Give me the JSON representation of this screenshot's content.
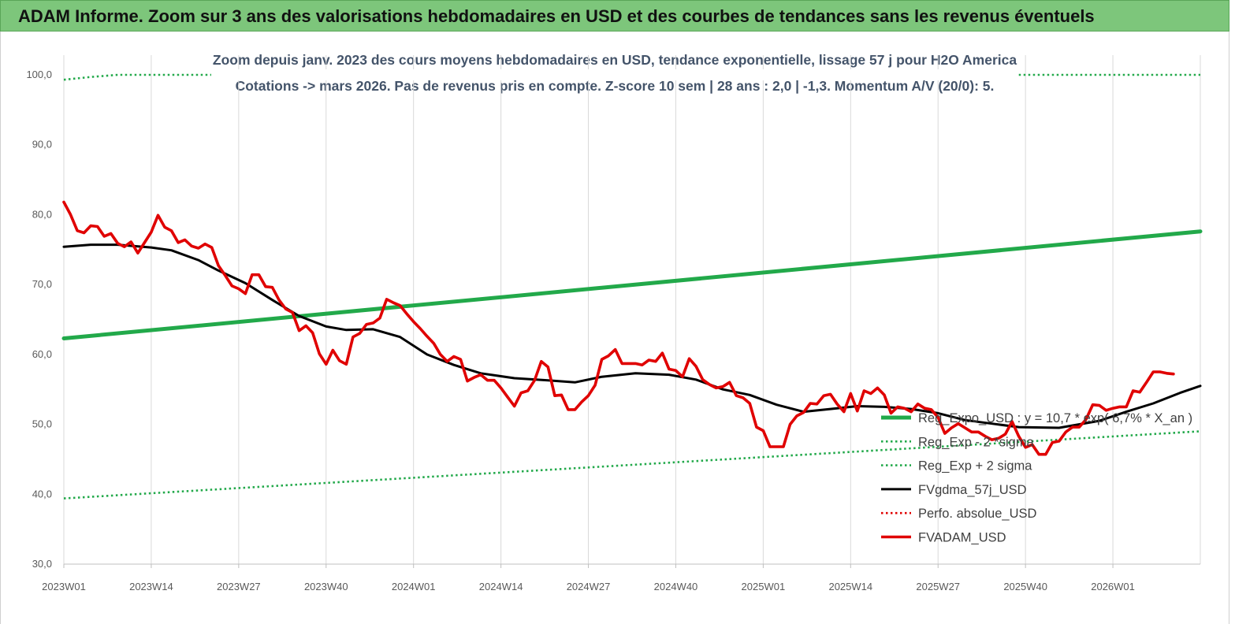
{
  "banner": {
    "title": "ADAM Informe. Zoom sur 3 ans des valorisations hebdomadaires en USD et des courbes de tendances sans les revenus éventuels",
    "color": "#7dc67b"
  },
  "chart_data": {
    "type": "line",
    "title_line1": "Zoom depuis janv. 2023 des cours moyens hebdomadaires en USD, tendance exponentielle, lissage 57 j pour H2O America",
    "title_line2": "Cotations -> mars 2026. Pas de revenus pris en compte. Z-score 10 sem | 28 ans : 2,0 | -1,3. Momentum A/V (20/0): 5.",
    "ylim": [
      30,
      100
    ],
    "y_ticks": [
      "30,0",
      "40,0",
      "50,0",
      "60,0",
      "70,0",
      "80,0",
      "90,0",
      "100,0"
    ],
    "x_ticks": [
      "2023W01",
      "2023W14",
      "2023W27",
      "2023W40",
      "2024W01",
      "2024W14",
      "2024W27",
      "2024W40",
      "2025W01",
      "2025W14",
      "2025W27",
      "2025W40",
      "2026W01"
    ],
    "x_range_weeks": [
      0,
      169
    ],
    "grid": "vertical",
    "legend_position": "right",
    "series": [
      {
        "name": "Reg_Expo_USD : y = 10,7 * exp( 6,7% * X_an )",
        "color": "#22a94a",
        "style": "solid-thick",
        "points": [
          [
            0,
            62.3
          ],
          [
            169,
            77.6
          ]
        ]
      },
      {
        "name": "Reg_Exp - 2 *sigma",
        "color": "#22a94a",
        "style": "dotted",
        "points": [
          [
            0,
            39.4
          ],
          [
            169,
            49.0
          ]
        ]
      },
      {
        "name": "Reg_Exp + 2 sigma",
        "color": "#22a94a",
        "style": "dotted",
        "points": [
          [
            0,
            99.3
          ],
          [
            4,
            99.7
          ],
          [
            8,
            100.0
          ],
          [
            169,
            100.0
          ]
        ]
      },
      {
        "name": "FVgdma_57j_USD",
        "color": "#000000",
        "style": "solid",
        "points": [
          [
            0,
            75.4
          ],
          [
            4,
            75.7
          ],
          [
            8,
            75.7
          ],
          [
            13,
            75.3
          ],
          [
            16,
            74.9
          ],
          [
            20,
            73.5
          ],
          [
            23,
            72.0
          ],
          [
            27,
            70.2
          ],
          [
            31,
            67.8
          ],
          [
            35,
            65.5
          ],
          [
            39,
            64.0
          ],
          [
            42,
            63.5
          ],
          [
            46,
            63.6
          ],
          [
            50,
            62.5
          ],
          [
            54,
            60.0
          ],
          [
            58,
            58.5
          ],
          [
            62,
            57.3
          ],
          [
            67,
            56.6
          ],
          [
            72,
            56.3
          ],
          [
            76,
            56.0
          ],
          [
            80,
            56.8
          ],
          [
            85,
            57.3
          ],
          [
            90,
            57.1
          ],
          [
            94,
            56.4
          ],
          [
            98,
            55.0
          ],
          [
            102,
            54.2
          ],
          [
            106,
            52.8
          ],
          [
            110,
            51.8
          ],
          [
            114,
            52.2
          ],
          [
            118,
            52.6
          ],
          [
            122,
            52.5
          ],
          [
            126,
            52.2
          ],
          [
            130,
            51.6
          ],
          [
            134,
            50.6
          ],
          [
            138,
            50.1
          ],
          [
            142,
            49.6
          ],
          [
            148,
            49.5
          ],
          [
            154,
            50.5
          ],
          [
            158,
            51.8
          ],
          [
            162,
            53.0
          ],
          [
            166,
            54.5
          ],
          [
            169,
            55.5
          ]
        ]
      },
      {
        "name": "Perfo. absolue_USD",
        "color": "#e00000",
        "style": "dotted",
        "points": []
      },
      {
        "name": "FVADAM_USD",
        "color": "#e00000",
        "style": "solid-thick",
        "points": [
          [
            0,
            81.8
          ],
          [
            1,
            80.0
          ],
          [
            2,
            77.7
          ],
          [
            3,
            77.4
          ],
          [
            4,
            78.4
          ],
          [
            5,
            78.3
          ],
          [
            6,
            76.9
          ],
          [
            7,
            77.3
          ],
          [
            8,
            75.9
          ],
          [
            9,
            75.4
          ],
          [
            10,
            76.1
          ],
          [
            11,
            74.5
          ],
          [
            12,
            76.0
          ],
          [
            13,
            77.5
          ],
          [
            14,
            79.9
          ],
          [
            15,
            78.2
          ],
          [
            16,
            77.7
          ],
          [
            17,
            76.0
          ],
          [
            18,
            76.4
          ],
          [
            19,
            75.5
          ],
          [
            20,
            75.2
          ],
          [
            21,
            75.8
          ],
          [
            22,
            75.3
          ],
          [
            23,
            72.7
          ],
          [
            24,
            71.3
          ],
          [
            25,
            69.8
          ],
          [
            26,
            69.4
          ],
          [
            27,
            68.7
          ],
          [
            28,
            71.4
          ],
          [
            29,
            71.4
          ],
          [
            30,
            69.7
          ],
          [
            31,
            69.6
          ],
          [
            32,
            67.8
          ],
          [
            33,
            66.5
          ],
          [
            34,
            66.0
          ],
          [
            35,
            63.4
          ],
          [
            36,
            64.1
          ],
          [
            37,
            63.1
          ],
          [
            38,
            60.1
          ],
          [
            39,
            58.6
          ],
          [
            40,
            60.6
          ],
          [
            41,
            59.1
          ],
          [
            42,
            58.6
          ],
          [
            43,
            62.5
          ],
          [
            44,
            63.0
          ],
          [
            45,
            64.3
          ],
          [
            46,
            64.5
          ],
          [
            47,
            65.2
          ],
          [
            48,
            67.9
          ],
          [
            49,
            67.4
          ],
          [
            50,
            67.0
          ],
          [
            51,
            65.8
          ],
          [
            52,
            64.7
          ],
          [
            53,
            63.7
          ],
          [
            54,
            62.6
          ],
          [
            55,
            61.6
          ],
          [
            56,
            60.0
          ],
          [
            57,
            59.0
          ],
          [
            58,
            59.7
          ],
          [
            59,
            59.3
          ],
          [
            60,
            56.2
          ],
          [
            61,
            56.7
          ],
          [
            62,
            57.1
          ],
          [
            63,
            56.3
          ],
          [
            64,
            56.3
          ],
          [
            65,
            55.2
          ],
          [
            66,
            53.9
          ],
          [
            67,
            52.6
          ],
          [
            68,
            54.5
          ],
          [
            69,
            54.8
          ],
          [
            70,
            56.3
          ],
          [
            71,
            59.0
          ],
          [
            72,
            58.2
          ],
          [
            73,
            54.1
          ],
          [
            74,
            54.2
          ],
          [
            75,
            52.1
          ],
          [
            76,
            52.1
          ],
          [
            77,
            53.2
          ],
          [
            78,
            54.1
          ],
          [
            79,
            55.6
          ],
          [
            80,
            59.3
          ],
          [
            81,
            59.8
          ],
          [
            82,
            60.7
          ],
          [
            83,
            58.7
          ],
          [
            84,
            58.7
          ],
          [
            85,
            58.7
          ],
          [
            86,
            58.5
          ],
          [
            87,
            59.2
          ],
          [
            88,
            59.0
          ],
          [
            89,
            60.2
          ],
          [
            90,
            57.9
          ],
          [
            91,
            57.7
          ],
          [
            92,
            56.8
          ],
          [
            93,
            59.4
          ],
          [
            94,
            58.3
          ],
          [
            95,
            56.4
          ],
          [
            96,
            55.7
          ],
          [
            97,
            55.2
          ],
          [
            98,
            55.4
          ],
          [
            99,
            56.0
          ],
          [
            100,
            54.1
          ],
          [
            101,
            53.8
          ],
          [
            102,
            53.0
          ],
          [
            103,
            49.6
          ],
          [
            104,
            49.1
          ],
          [
            105,
            46.8
          ],
          [
            106,
            46.8
          ],
          [
            107,
            46.8
          ],
          [
            108,
            50.0
          ],
          [
            109,
            51.2
          ],
          [
            110,
            51.7
          ],
          [
            111,
            53.0
          ],
          [
            112,
            52.9
          ],
          [
            113,
            54.1
          ],
          [
            114,
            54.3
          ],
          [
            115,
            52.9
          ],
          [
            116,
            51.8
          ],
          [
            117,
            54.4
          ],
          [
            118,
            51.9
          ],
          [
            119,
            54.8
          ],
          [
            120,
            54.4
          ],
          [
            121,
            55.2
          ],
          [
            122,
            54.2
          ],
          [
            123,
            51.6
          ],
          [
            124,
            52.5
          ],
          [
            125,
            52.3
          ],
          [
            126,
            51.8
          ],
          [
            127,
            52.9
          ],
          [
            128,
            52.3
          ],
          [
            129,
            52.1
          ],
          [
            130,
            51.0
          ],
          [
            131,
            48.7
          ],
          [
            132,
            49.5
          ],
          [
            133,
            50.1
          ],
          [
            134,
            49.5
          ],
          [
            135,
            48.9
          ],
          [
            136,
            48.9
          ],
          [
            137,
            48.3
          ],
          [
            138,
            47.8
          ],
          [
            139,
            48.0
          ],
          [
            140,
            48.6
          ],
          [
            141,
            50.4
          ],
          [
            142,
            48.3
          ],
          [
            143,
            46.7
          ],
          [
            144,
            47.1
          ],
          [
            145,
            45.7
          ],
          [
            146,
            45.7
          ],
          [
            147,
            47.4
          ],
          [
            148,
            47.6
          ],
          [
            149,
            48.9
          ],
          [
            150,
            49.6
          ],
          [
            151,
            49.6
          ],
          [
            152,
            50.7
          ],
          [
            153,
            52.8
          ],
          [
            154,
            52.7
          ],
          [
            155,
            52.0
          ],
          [
            156,
            52.3
          ],
          [
            157,
            52.5
          ],
          [
            158,
            52.5
          ],
          [
            159,
            54.8
          ],
          [
            160,
            54.6
          ],
          [
            161,
            56.0
          ],
          [
            162,
            57.5
          ],
          [
            163,
            57.5
          ],
          [
            164,
            57.3
          ],
          [
            165,
            57.2
          ]
        ]
      }
    ]
  }
}
